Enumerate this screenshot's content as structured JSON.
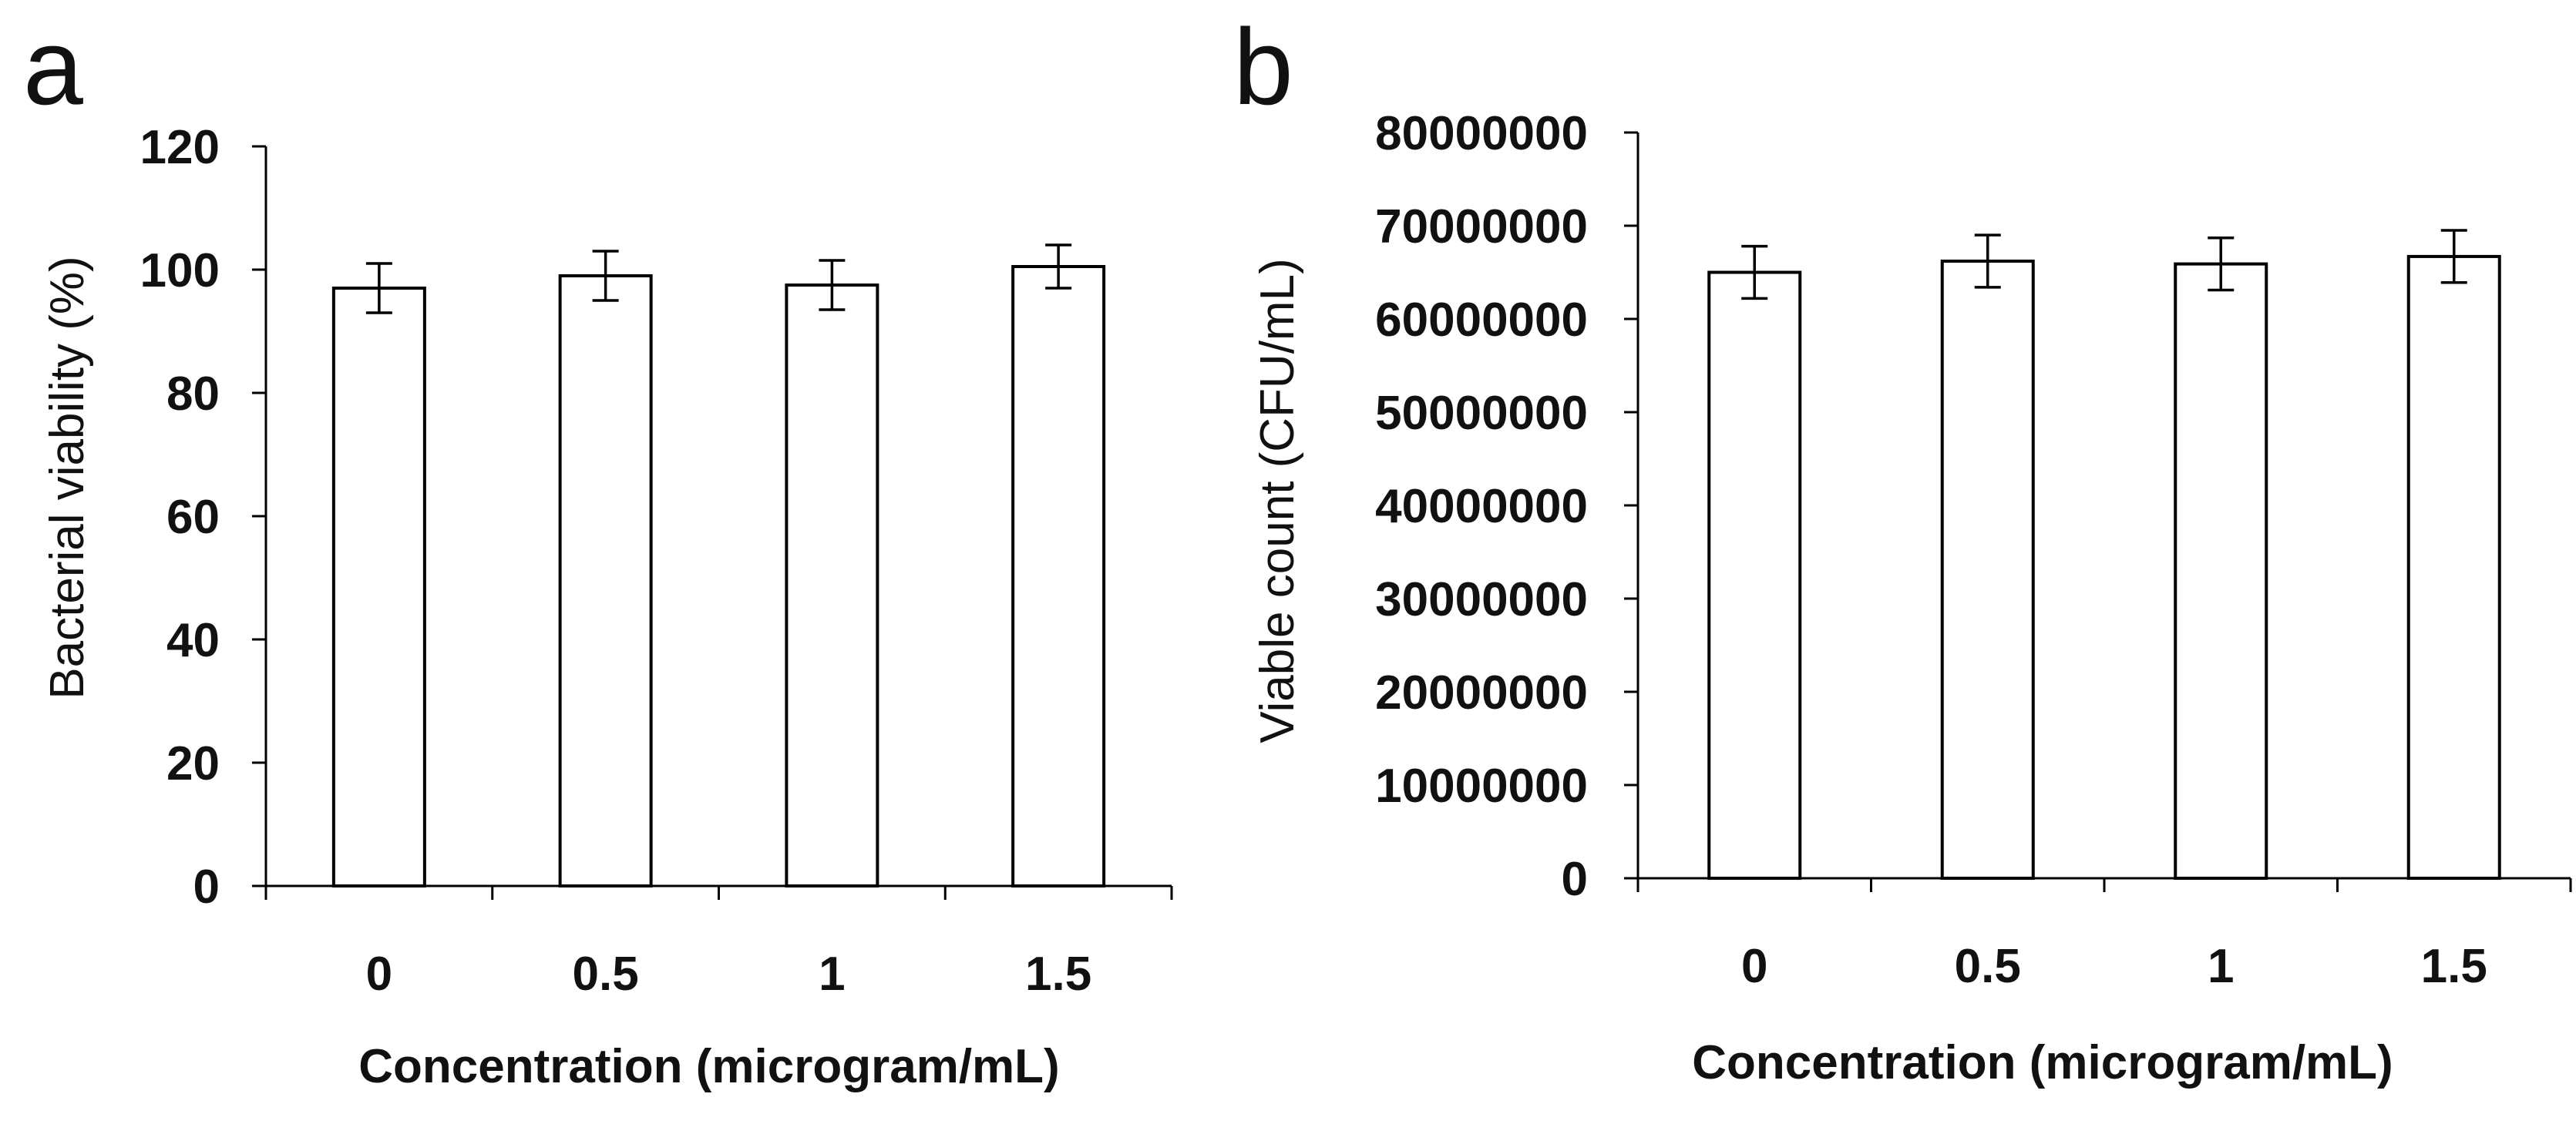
{
  "chart_data": [
    {
      "panel_label": "a",
      "type": "bar",
      "categories": [
        "0",
        "0.5",
        "1",
        "1.5"
      ],
      "values": [
        97,
        99,
        97.5,
        100.5
      ],
      "errors": [
        4,
        4,
        4,
        3.5
      ],
      "xlabel": "Concentration (microgram/mL)",
      "ylabel": "Bacterial viability (%)",
      "ylim": [
        0,
        120
      ],
      "yticks": [
        0,
        20,
        40,
        60,
        80,
        100,
        120
      ],
      "ytick_labels": [
        "0",
        "20",
        "40",
        "60",
        "80",
        "100",
        "120"
      ],
      "grid": false,
      "legend": "none",
      "bar_color": "#ffffff",
      "edge_color": "#000000"
    },
    {
      "panel_label": "b",
      "type": "bar",
      "categories": [
        "0",
        "0.5",
        "1",
        "1.5"
      ],
      "values": [
        65000000,
        66200000,
        65900000,
        66700000
      ],
      "errors": [
        2800000,
        2800000,
        2800000,
        2800000
      ],
      "xlabel": "Concentration (microgram/mL)",
      "ylabel": "Viable count (CFU/mL)",
      "ylim": [
        0,
        80000000
      ],
      "yticks": [
        0,
        10000000,
        20000000,
        30000000,
        40000000,
        50000000,
        60000000,
        70000000,
        80000000
      ],
      "ytick_labels": [
        "0",
        "10000000",
        "20000000",
        "30000000",
        "40000000",
        "50000000",
        "60000000",
        "70000000",
        "80000000"
      ],
      "grid": false,
      "legend": "none",
      "bar_color": "#ffffff",
      "edge_color": "#000000"
    }
  ]
}
